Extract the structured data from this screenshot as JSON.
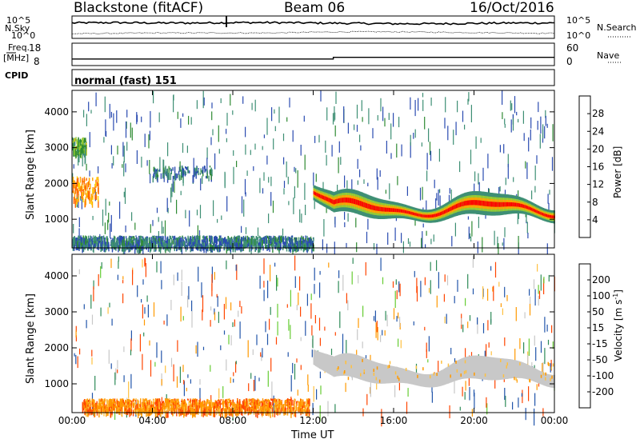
{
  "header": {
    "station": "Blackstone (fitACF)",
    "beam": "Beam 06",
    "date": "16/Oct/2016"
  },
  "top_panels": {
    "nsky_label": "N.Sky",
    "nsky_ticks": [
      "10^5",
      "10^0"
    ],
    "nsearch_label": "N.Search",
    "nsearch_ticks": [
      "10^5",
      "10^0"
    ],
    "freq_label": "Freq.",
    "freq_unit": "[MHz]",
    "freq_ticks": [
      "18",
      "8"
    ],
    "nave_label": "Nave",
    "nave_ticks": [
      "60",
      "0"
    ],
    "cpid_label": "CPID",
    "cpid_value": "normal (fast) 151"
  },
  "colors": {
    "power_scale": [
      "#0000ff",
      "#2a4bb0",
      "#3e8f74",
      "#2f8a33",
      "#9acd32",
      "#ffd700",
      "#ffa500",
      "#ff6600",
      "#ff0000"
    ],
    "velocity_scale": [
      "#ff0000",
      "#ff4500",
      "#ff9900",
      "#ffc040",
      "#c8c8c8",
      "#c8c8c8",
      "#66cc33",
      "#2e8b57",
      "#2255aa",
      "#0000cc"
    ],
    "ground_scatter": "#c8c8c8"
  },
  "chart_data": [
    {
      "type": "line",
      "panel": "N.Sky / N.Search",
      "series": [
        {
          "name": "N.Sky",
          "x": [
            "00:00",
            "02:00",
            "04:00",
            "06:00",
            "08:00",
            "10:00",
            "12:00",
            "14:00",
            "16:00",
            "18:00",
            "20:00",
            "22:00",
            "00:00"
          ],
          "values_log10": [
            3.6,
            3.7,
            3.6,
            3.6,
            3.7,
            3.7,
            3.6,
            3.5,
            3.4,
            3.4,
            3.5,
            3.6,
            3.6
          ]
        },
        {
          "name": "N.Search",
          "x": [
            "00:00",
            "02:00",
            "04:00",
            "06:00",
            "08:00",
            "10:00",
            "12:00",
            "14:00",
            "16:00",
            "18:00",
            "20:00",
            "22:00",
            "00:00"
          ],
          "values_log10": [
            0.8,
            0.9,
            1.0,
            1.0,
            1.0,
            1.0,
            1.2,
            1.3,
            1.3,
            1.2,
            1.1,
            1.0,
            0.9
          ]
        }
      ],
      "yticks": [
        "10^5",
        "10^0"
      ]
    },
    {
      "type": "line",
      "panel": "Freq / Nave",
      "series": [
        {
          "name": "Freq.",
          "x": [
            "00:00",
            "13:00",
            "13:00",
            "24:00"
          ],
          "values": [
            10.4,
            10.4,
            11.2,
            11.2
          ]
        }
      ],
      "yticks_left": [
        "18",
        "8"
      ],
      "yticks_right": [
        "60",
        "0"
      ],
      "ylabel_left": "Freq. [MHz]",
      "ylabel_right": "Nave"
    },
    {
      "type": "heatmap",
      "title": "",
      "ylabel": "Slant Range [km]",
      "xlabel": "Time UT",
      "xticks": [
        "00:00",
        "04:00",
        "08:00",
        "12:00",
        "16:00",
        "20:00",
        "00:00"
      ],
      "yticks": [
        "1000",
        "2000",
        "3000",
        "4000"
      ],
      "ylim": [
        200,
        4600
      ],
      "xlim_hours": [
        0,
        24
      ],
      "colorbar_label": "Power [dB]",
      "colorbar_ticks": [
        "4",
        "8",
        "12",
        "16",
        "20",
        "24",
        "28"
      ],
      "features": [
        {
          "name": "near-range band",
          "t": [
            0,
            12
          ],
          "range_km": [
            250,
            550
          ],
          "power_db": 6
        },
        {
          "name": "early arc",
          "t": [
            0,
            1.3
          ],
          "range_km": [
            1500,
            2200
          ],
          "power_db": 22
        },
        {
          "name": "early upper patch",
          "t": [
            0,
            0.7
          ],
          "range_km": [
            2900,
            3300
          ],
          "power_db": 12
        },
        {
          "name": "mid patch",
          "t": [
            4,
            7
          ],
          "range_km": [
            2200,
            2500
          ],
          "power_db": 6
        },
        {
          "name": "main band",
          "t": [
            12,
            24
          ],
          "range_km": [
            1000,
            1800
          ],
          "power_db": 28
        }
      ]
    },
    {
      "type": "heatmap",
      "title": "",
      "ylabel": "Slant Range [km]",
      "xlabel": "Time UT",
      "xticks": [
        "00:00",
        "04:00",
        "08:00",
        "12:00",
        "16:00",
        "20:00",
        "00:00"
      ],
      "yticks": [
        "1000",
        "2000",
        "3000",
        "4000"
      ],
      "ylim": [
        200,
        4600
      ],
      "xlim_hours": [
        0,
        24
      ],
      "colorbar_label": "Velocity [m s^-1]",
      "colorbar_label_main": "Velocity [m s",
      "colorbar_label_exp": "-1",
      "colorbar_label_close": "]",
      "colorbar_ticks": [
        "-200",
        "-100",
        "-50",
        "-15",
        "15",
        "50",
        "100",
        "200"
      ],
      "features": [
        {
          "name": "near-range band",
          "t": [
            0.5,
            11.8
          ],
          "range_km": [
            250,
            600
          ],
          "velocity": -60
        },
        {
          "name": "main band",
          "t": [
            12,
            24
          ],
          "range_km": [
            1000,
            1900
          ],
          "velocity": 0,
          "ground_scatter": true
        }
      ]
    }
  ],
  "axis": {
    "xlabel": "Time UT",
    "ylabel": "Slant Range [km]"
  }
}
